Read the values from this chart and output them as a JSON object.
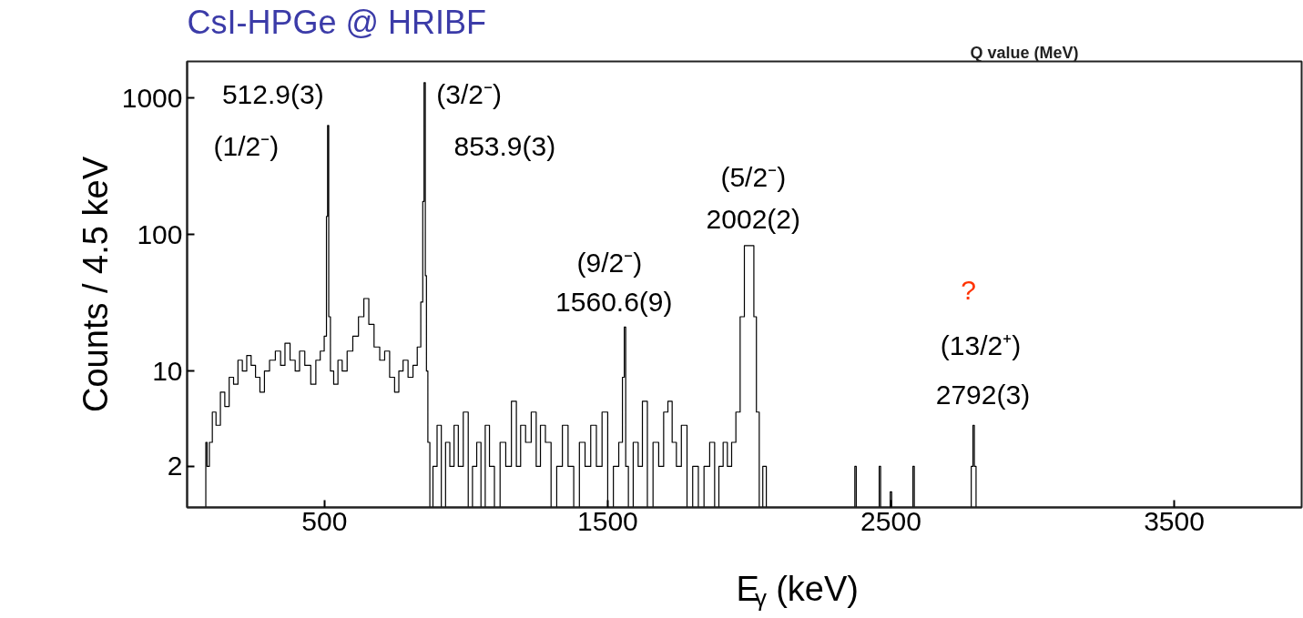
{
  "chart_data": {
    "type": "step",
    "title": "CsI-HPGe @ HRIBF",
    "xlabel": "E$_{γ}$ (keV)",
    "ylabel": "Counts / 4.5 keV",
    "x": [
      79,
      83,
      88,
      99,
      109,
      125,
      140,
      156,
      171,
      187,
      202,
      218,
      233,
      249,
      264,
      280,
      296,
      316,
      337,
      353,
      368,
      389,
      404,
      420,
      441,
      462,
      477,
      493,
      505,
      509,
      513,
      517,
      525,
      540,
      555,
      570,
      590,
      610,
      630,
      648,
      665,
      685,
      705,
      720,
      740,
      755,
      770,
      785,
      805,
      820,
      835,
      845,
      849,
      854,
      858,
      862,
      868,
      876,
      890,
      905,
      920,
      935,
      950,
      965,
      980,
      1000,
      1015,
      1030,
      1045,
      1060,
      1075,
      1090,
      1110,
      1130,
      1150,
      1170,
      1185,
      1200,
      1220,
      1240,
      1255,
      1270,
      1290,
      1310,
      1330,
      1350,
      1370,
      1390,
      1410,
      1430,
      1450,
      1470,
      1490,
      1510,
      1530,
      1548,
      1556,
      1561,
      1566,
      1580,
      1600,
      1615,
      1630,
      1650,
      1670,
      1690,
      1705,
      1720,
      1735,
      1750,
      1770,
      1790,
      1810,
      1830,
      1850,
      1870,
      1885,
      1900,
      1915,
      1930,
      1945,
      1960,
      1975,
      1990,
      2002,
      2012,
      2020,
      2030,
      2040,
      2055,
      2065,
      2370,
      2375,
      2380,
      2456,
      2461,
      2466,
      2495,
      2500,
      2505,
      2575,
      2580,
      2585,
      2780,
      2787,
      2792,
      2797,
      2804
    ],
    "values": [
      1,
      3,
      2,
      3,
      5,
      4,
      7,
      5.5,
      9,
      8,
      12,
      10,
      13,
      11,
      9,
      7,
      10,
      12,
      14,
      11,
      16,
      12,
      10,
      14,
      11,
      8,
      12,
      14,
      18,
      136,
      630,
      25,
      10,
      8,
      12,
      10,
      14,
      18,
      25,
      34,
      22,
      15,
      12,
      14,
      9,
      7,
      10,
      12,
      9,
      11,
      15,
      32,
      175,
      1300,
      50,
      10,
      3,
      1,
      2,
      4,
      1,
      3,
      2,
      4,
      2,
      5,
      1,
      2,
      3,
      1,
      4,
      2,
      1,
      3,
      2,
      6,
      2,
      4,
      3,
      5,
      2,
      4,
      3,
      1,
      2,
      4,
      2,
      1,
      3,
      2,
      4,
      2,
      5,
      1,
      2,
      3,
      9,
      21,
      2,
      1,
      3,
      2,
      6,
      1,
      3,
      2,
      5,
      6,
      3,
      2,
      4,
      1,
      2,
      1,
      2,
      3,
      1,
      2,
      3,
      2,
      3,
      5,
      25,
      83,
      83,
      83,
      25,
      5,
      1,
      2,
      1,
      1,
      2,
      1,
      1,
      2,
      1,
      1,
      1.3,
      1,
      1,
      2,
      1,
      1,
      2,
      4,
      2,
      1
    ],
    "color": "#000000",
    "log": "y",
    "grid": false,
    "xlim": [
      15,
      3950
    ],
    "ylim": [
      1,
      1860
    ],
    "xticks": [
      500,
      1500,
      2500,
      3500
    ],
    "yticks": [
      2,
      10,
      100,
      1000
    ],
    "annotations": [
      "512.9(3)",
      "(1/2⁻)",
      "(3/2⁻)",
      "853.9(3)",
      "(9/2⁻)",
      "1560.6(9)",
      "(5/2⁻)",
      "2002(2)",
      "?",
      "(13/2⁺)",
      "2792(3)",
      "Q value (MeV)"
    ]
  }
}
